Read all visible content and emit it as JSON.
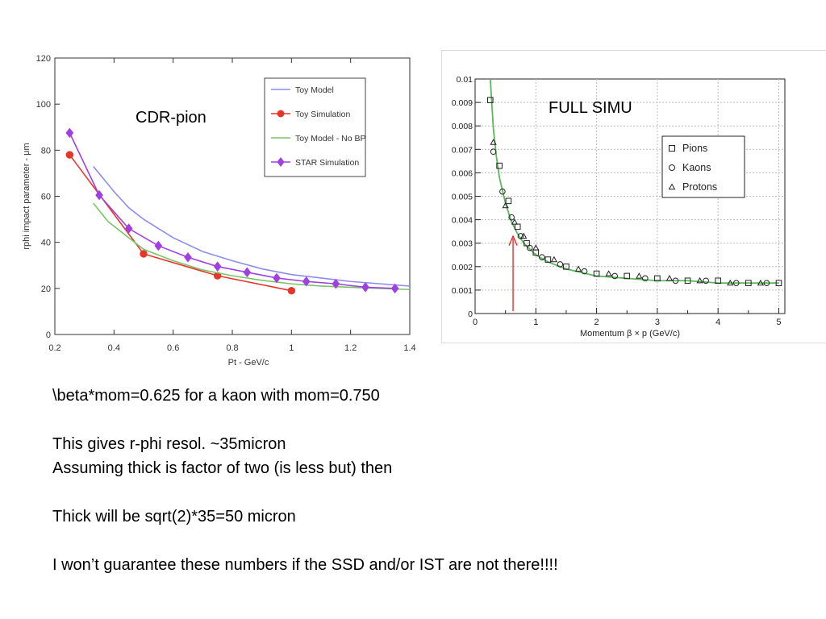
{
  "left_chart_title": "CDR-pion",
  "right_chart_title": "FULL SIMU",
  "notes": {
    "line1": "\\beta*mom=0.625 for a kaon with mom=0.750",
    "line2": "This gives r-phi resol. ~35micron",
    "line3": "Assuming thick is factor of two (is less but) then",
    "line4": "Thick will be sqrt(2)*35=50 micron",
    "line5": "I won’t guarantee these numbers if the SSD and/or IST are not there!!!!"
  },
  "colors": {
    "toy_model": "#8c8cf0",
    "toy_simulation": "#e8352a",
    "toy_model_no_bp": "#7ac468",
    "star_simulation": "#a040e0",
    "full_simu_curve": "#5cb85c",
    "arrow": "#e02020"
  },
  "chart_data": [
    {
      "type": "line",
      "title": "CDR-pion",
      "xlabel": "Pt - GeV/c",
      "ylabel": "rphi impact parameter - μm",
      "xlim": [
        0.2,
        1.4
      ],
      "ylim": [
        0,
        120
      ],
      "xticks": [
        0.2,
        0.4,
        0.6,
        0.8,
        1,
        1.2,
        1.4
      ],
      "yticks": [
        0,
        20,
        40,
        60,
        80,
        100,
        120
      ],
      "grid": false,
      "legend_position": "top-right",
      "series": [
        {
          "name": "Toy Model",
          "marker": "none",
          "x": [
            0.33,
            0.4,
            0.45,
            0.5,
            0.6,
            0.7,
            0.8,
            0.9,
            1.0,
            1.1,
            1.2,
            1.3,
            1.4
          ],
          "y": [
            73,
            62,
            55,
            50,
            42,
            36,
            32,
            28.5,
            26,
            24.5,
            23,
            22,
            21
          ]
        },
        {
          "name": "Toy Simulation",
          "marker": "circle",
          "x": [
            0.25,
            0.5,
            0.75,
            1.0
          ],
          "y": [
            78,
            35,
            25.5,
            19
          ]
        },
        {
          "name": "Toy Model - No BP",
          "marker": "none",
          "x": [
            0.33,
            0.38,
            0.45,
            0.5,
            0.6,
            0.7,
            0.8,
            0.9,
            1.0,
            1.1,
            1.2,
            1.3,
            1.4
          ],
          "y": [
            57,
            49,
            42,
            37,
            32,
            28,
            25.5,
            23.5,
            22,
            21,
            20.5,
            20,
            19.5
          ]
        },
        {
          "name": "STAR Simulation",
          "marker": "diamond",
          "x": [
            0.25,
            0.35,
            0.45,
            0.55,
            0.65,
            0.75,
            0.85,
            0.95,
            1.05,
            1.15,
            1.25,
            1.35
          ],
          "y": [
            87.5,
            60.5,
            46,
            38.5,
            33.5,
            29.5,
            27,
            24.5,
            23,
            22,
            20.5,
            20
          ]
        }
      ]
    },
    {
      "type": "scatter",
      "title": "FULL SIMU",
      "xlabel": "Momentum β × p (GeV/c)",
      "ylabel": "",
      "xlim": [
        0,
        5.1
      ],
      "ylim": [
        0,
        0.01
      ],
      "xticks": [
        0,
        1,
        2,
        3,
        4,
        5
      ],
      "yticks": [
        0,
        0.001,
        0.002,
        0.003,
        0.004,
        0.005,
        0.006,
        0.007,
        0.008,
        0.009,
        0.01
      ],
      "ytick_labels": [
        "0",
        "0.001",
        "0.002",
        "0.003",
        "0.004",
        "0.005",
        "0.006",
        "0.007",
        "0.008",
        "0.009",
        "0.01"
      ],
      "grid": true,
      "legend_position": "top-right",
      "annotation": "arrow at x = 0.625",
      "series": [
        {
          "name": "Pions",
          "marker": "square",
          "x": [
            0.25,
            0.4,
            0.55,
            0.7,
            0.85,
            1.0,
            1.2,
            1.5,
            2.0,
            2.5,
            3.0,
            3.5,
            4.0,
            4.5,
            5.0
          ],
          "y": [
            0.0091,
            0.0063,
            0.0048,
            0.0037,
            0.003,
            0.0026,
            0.0023,
            0.002,
            0.0017,
            0.0016,
            0.0015,
            0.0014,
            0.0014,
            0.0013,
            0.0013
          ]
        },
        {
          "name": "Kaons",
          "marker": "circle",
          "x": [
            0.3,
            0.45,
            0.6,
            0.75,
            0.9,
            1.1,
            1.4,
            1.8,
            2.3,
            2.8,
            3.3,
            3.8,
            4.3,
            4.8
          ],
          "y": [
            0.0069,
            0.0052,
            0.0041,
            0.0033,
            0.0028,
            0.0024,
            0.0021,
            0.0018,
            0.0016,
            0.0015,
            0.0014,
            0.0014,
            0.0013,
            0.0013
          ]
        },
        {
          "name": "Protons",
          "marker": "triangle",
          "x": [
            0.3,
            0.5,
            0.65,
            0.8,
            1.0,
            1.3,
            1.7,
            2.2,
            2.7,
            3.2,
            3.7,
            4.2,
            4.7
          ],
          "y": [
            0.0073,
            0.0046,
            0.0039,
            0.0033,
            0.0028,
            0.0023,
            0.0019,
            0.0017,
            0.0016,
            0.0015,
            0.0014,
            0.0013,
            0.0013
          ]
        }
      ],
      "fit_curve": {
        "x": [
          0.25,
          0.3,
          0.35,
          0.4,
          0.5,
          0.6,
          0.7,
          0.8,
          1.0,
          1.2,
          1.5,
          2.0,
          2.5,
          3.0,
          3.5,
          4.0,
          4.5,
          5.0
        ],
        "y": [
          0.01,
          0.0079,
          0.0067,
          0.0058,
          0.0047,
          0.0039,
          0.0034,
          0.003,
          0.0025,
          0.0022,
          0.0019,
          0.0016,
          0.0015,
          0.0014,
          0.0014,
          0.0013,
          0.0013,
          0.0013
        ]
      }
    }
  ]
}
